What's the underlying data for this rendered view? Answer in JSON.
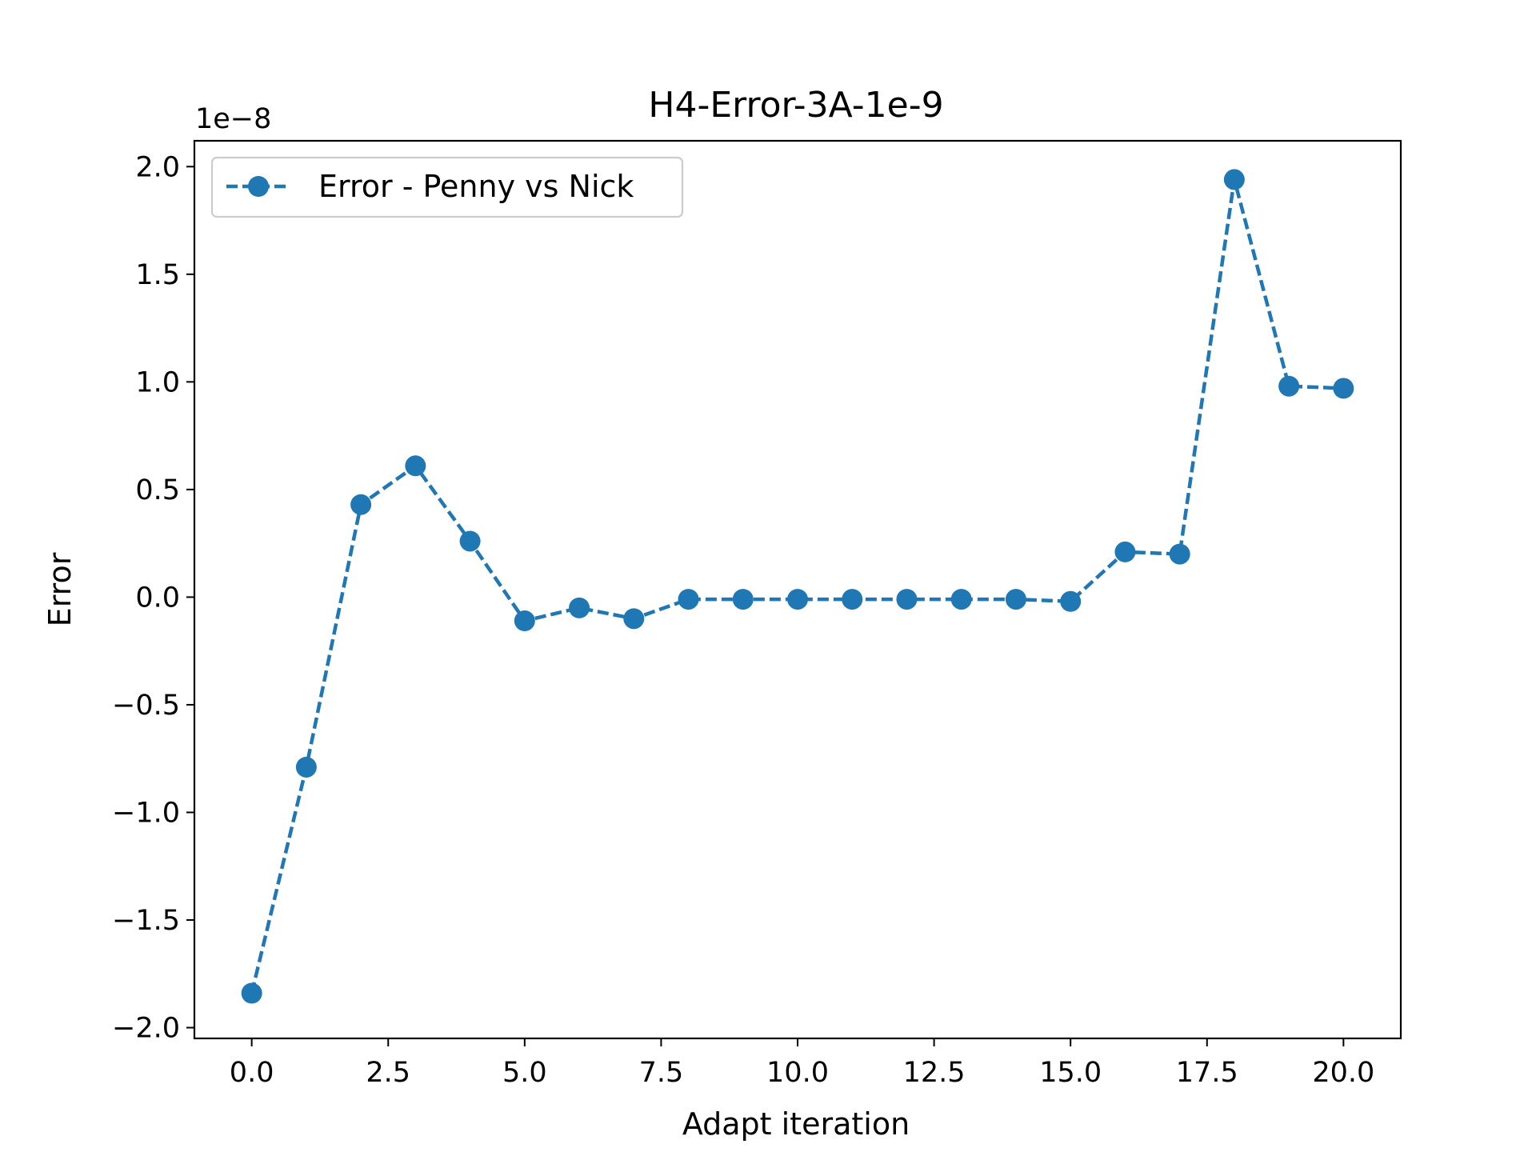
{
  "chart_data": {
    "type": "line",
    "title": "H4-Error-3A-1e-9",
    "xlabel": "Adapt iteration",
    "ylabel": "Error",
    "y_offset_label": "1e−8",
    "xlim": [
      -1.05,
      21.05
    ],
    "ylim": [
      -2.05,
      2.12
    ],
    "x_ticks": [
      "0.0",
      "2.5",
      "5.0",
      "7.5",
      "10.0",
      "12.5",
      "15.0",
      "17.5",
      "20.0"
    ],
    "x_tick_values": [
      0,
      2.5,
      5,
      7.5,
      10,
      12.5,
      15,
      17.5,
      20
    ],
    "y_ticks": [
      "−2.0",
      "−1.5",
      "−1.0",
      "−0.5",
      "0.0",
      "0.5",
      "1.0",
      "1.5",
      "2.0"
    ],
    "y_tick_values": [
      -2.0,
      -1.5,
      -1.0,
      -0.5,
      0.0,
      0.5,
      1.0,
      1.5,
      2.0
    ],
    "grid": false,
    "legend_position": "top-left",
    "series": [
      {
        "name": "Error - Penny vs Nick",
        "color": "#1f77b4",
        "line_style": "dashed",
        "marker": "circle",
        "x": [
          0,
          1,
          2,
          3,
          4,
          5,
          6,
          7,
          8,
          9,
          10,
          11,
          12,
          13,
          14,
          15,
          16,
          17,
          18,
          19,
          20
        ],
        "y": [
          -1.84,
          -0.79,
          0.43,
          0.61,
          0.26,
          -0.11,
          -0.05,
          -0.1,
          -0.01,
          -0.01,
          -0.01,
          -0.01,
          -0.01,
          -0.01,
          -0.01,
          -0.02,
          0.21,
          0.2,
          1.94,
          0.98,
          0.97
        ]
      }
    ]
  }
}
